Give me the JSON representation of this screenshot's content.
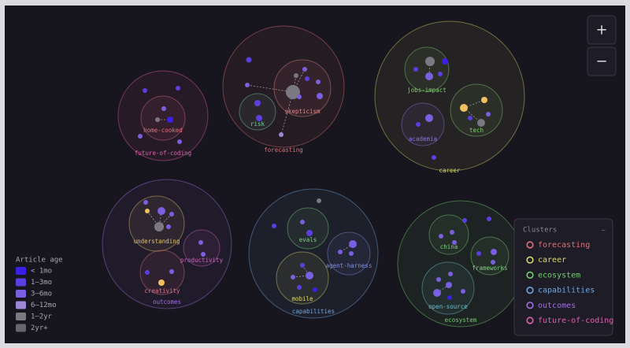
{
  "zoom_controls": {
    "zoom_in": "+",
    "zoom_out": "−"
  },
  "clusters": [
    {
      "label": "forecasting",
      "color": "#e0707a",
      "subclusters": [
        {
          "label": "skepticism",
          "color": "#e08a8a"
        },
        {
          "label": "risk",
          "color": "#70d0a0"
        }
      ]
    },
    {
      "label": "career",
      "color": "#d8d870",
      "subclusters": [
        {
          "label": "jobs-impact",
          "color": "#80d070"
        },
        {
          "label": "academia",
          "color": "#9070e0"
        },
        {
          "label": "tech",
          "color": "#80d070"
        }
      ]
    },
    {
      "label": "ecosystem",
      "color": "#70d070",
      "subclusters": [
        {
          "label": "china",
          "color": "#80d080"
        },
        {
          "label": "frameworks",
          "color": "#80d080"
        },
        {
          "label": "open-source",
          "color": "#70c0d0"
        }
      ]
    },
    {
      "label": "capabilities",
      "color": "#70a8e0",
      "subclusters": [
        {
          "label": "evals",
          "color": "#80d080"
        },
        {
          "label": "agent-harness",
          "color": "#8090e0"
        },
        {
          "label": "mobile",
          "color": "#d8d870"
        }
      ]
    },
    {
      "label": "outcomes",
      "color": "#a070e0",
      "subclusters": [
        {
          "label": "understanding",
          "color": "#e0c070"
        },
        {
          "label": "productivity",
          "color": "#d060c0"
        },
        {
          "label": "creativity",
          "color": "#e07080"
        }
      ]
    },
    {
      "label": "future-of-coding",
      "color": "#e060b0",
      "subclusters": [
        {
          "label": "home-cooked",
          "color": "#e07080"
        }
      ]
    }
  ],
  "legend": {
    "title": "Article age",
    "items": [
      {
        "label": "< 1mo",
        "color": "#3b1fe6"
      },
      {
        "label": "1–3mo",
        "color": "#5b3fe0"
      },
      {
        "label": "3–6mo",
        "color": "#7a5fe0"
      },
      {
        "label": "6–12mo",
        "color": "#9b86d8"
      },
      {
        "label": "1–2yr",
        "color": "#7a7880"
      },
      {
        "label": "2yr+",
        "color": "#66656c"
      }
    ]
  },
  "cluster_panel": {
    "title": "Clusters",
    "collapse": "—"
  }
}
